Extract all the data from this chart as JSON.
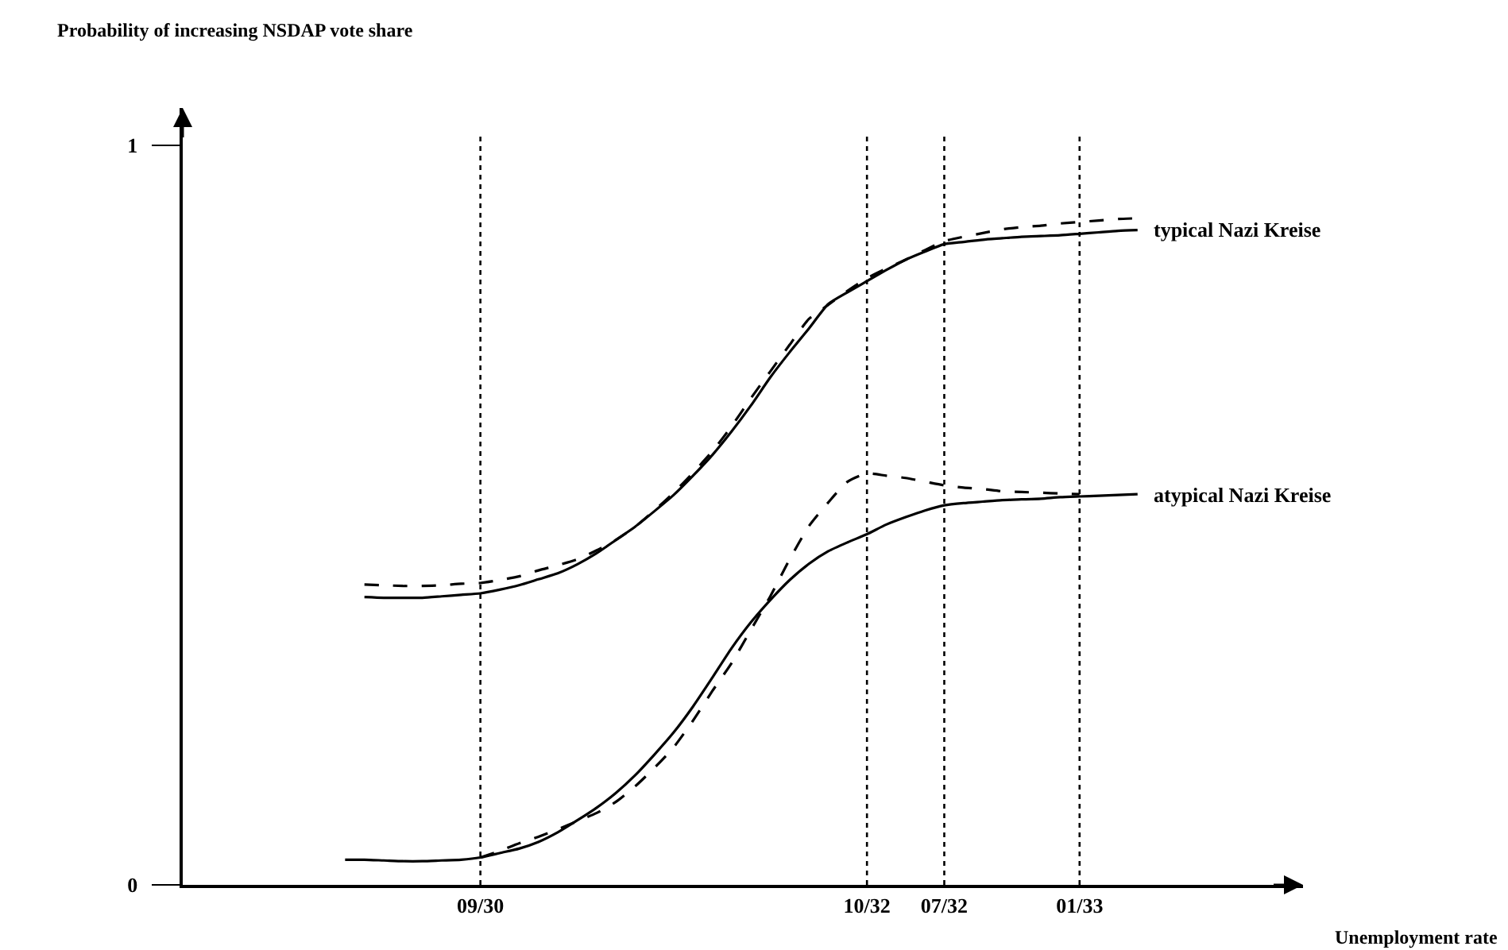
{
  "chart_data": {
    "type": "line",
    "ylabel": "Probability of increasing NSDAP vote share",
    "annotations": [
      "Unemployment rate"
    ],
    "categories": [
      null,
      null,
      null,
      null,
      null,
      null,
      null,
      "09/30",
      null,
      null,
      null,
      null,
      null,
      null,
      null,
      null,
      null,
      null,
      null,
      null,
      null,
      null,
      null,
      null,
      null,
      null,
      null,
      "10/32",
      null,
      null,
      null,
      "07/32",
      null,
      null,
      null,
      null,
      null,
      null,
      "01/33",
      null,
      null,
      null
    ],
    "ylim": [
      0,
      1.05
    ],
    "yticks": [
      0,
      1
    ],
    "legend": false,
    "marker": "none",
    "ref_lines": [
      {
        "axis": "x",
        "value": "09/30",
        "line_style": "dotted",
        "color": "#000000"
      },
      {
        "axis": "x",
        "value": "10/32",
        "line_style": "dotted",
        "color": "#000000"
      },
      {
        "axis": "x",
        "value": "07/32",
        "line_style": "dotted",
        "color": "#000000"
      },
      {
        "axis": "x",
        "value": "01/33",
        "line_style": "dotted",
        "color": "#000000"
      }
    ],
    "series": [
      {
        "name": "typical Nazi Kreise",
        "color": "#000000",
        "line_style": "solid",
        "values": [
          null,
          0.389,
          0.388,
          0.388,
          0.388,
          0.39,
          0.392,
          0.394,
          0.399,
          0.405,
          0.413,
          0.421,
          0.433,
          0.448,
          0.466,
          0.484,
          0.505,
          0.527,
          0.553,
          0.581,
          0.613,
          0.648,
          0.686,
          0.72,
          0.752,
          0.785,
          0.801,
          0.816,
          0.831,
          0.845,
          0.856,
          0.866,
          0.869,
          0.872,
          0.874,
          0.876,
          0.877,
          0.878,
          0.88,
          0.882,
          0.884,
          0.885
        ]
      },
      {
        "color": "#000000",
        "line_style": "dashed",
        "values": [
          null,
          0.406,
          0.405,
          0.404,
          0.404,
          0.405,
          0.407,
          0.408,
          0.412,
          0.417,
          0.425,
          0.432,
          0.44,
          0.452,
          0.466,
          0.484,
          0.506,
          0.53,
          0.557,
          0.586,
          0.62,
          0.658,
          0.694,
          0.73,
          0.765,
          0.784,
          0.803,
          0.82,
          0.833,
          0.845,
          0.858,
          0.87,
          0.876,
          0.881,
          0.886,
          0.889,
          0.891,
          0.894,
          0.896,
          0.898,
          0.9,
          0.901
        ]
      },
      {
        "name": "atypical Nazi Kreise",
        "color": "#000000",
        "line_style": "solid",
        "values": [
          0.034,
          0.034,
          0.033,
          0.032,
          0.032,
          0.033,
          0.034,
          0.037,
          0.043,
          0.049,
          0.058,
          0.071,
          0.087,
          0.104,
          0.124,
          0.148,
          0.176,
          0.206,
          0.241,
          0.28,
          0.32,
          0.355,
          0.385,
          0.412,
          0.434,
          0.451,
          0.463,
          0.474,
          0.487,
          0.497,
          0.506,
          0.513,
          0.516,
          0.518,
          0.52,
          0.521,
          0.522,
          0.524,
          0.525,
          0.526,
          0.527,
          0.528
        ]
      },
      {
        "color": "#000000",
        "line_style": "dashed",
        "values": [
          null,
          null,
          null,
          null,
          null,
          null,
          null,
          0.037,
          0.046,
          0.056,
          0.065,
          0.075,
          0.086,
          0.097,
          0.112,
          0.133,
          0.158,
          0.186,
          0.222,
          0.262,
          0.3,
          0.345,
          0.39,
          0.44,
          0.485,
          0.517,
          0.545,
          0.556,
          0.553,
          0.55,
          0.545,
          0.54,
          0.537,
          0.535,
          0.532,
          0.531,
          0.53,
          0.529,
          0.528,
          null,
          null,
          null
        ]
      }
    ]
  }
}
